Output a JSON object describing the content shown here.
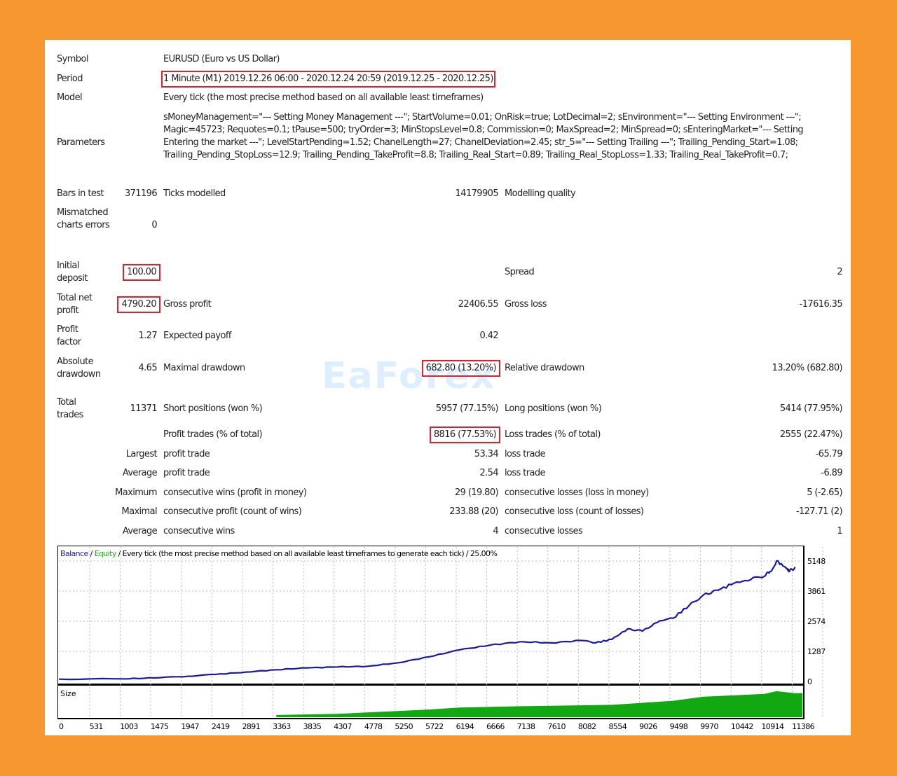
{
  "report": {
    "symbol": {
      "label": "Symbol",
      "value": "EURUSD (Euro vs US Dollar)"
    },
    "period": {
      "label": "Period",
      "value": "1 Minute (M1) 2019.12.26 06:00 - 2020.12.24 20:59 (2019.12.25 - 2020.12.25)"
    },
    "model": {
      "label": "Model",
      "value": "Every tick (the most precise method based on all available least timeframes)"
    },
    "parameters": {
      "label": "Parameters",
      "value": "sMoneyManagement=\"--- Setting Money Management ---\"; StartVolume=0.01; OnRisk=true; LotDecimal=2; sEnvironment=\"--- Setting Environment ---\"; Magic=45723; Requotes=0.1; tPause=500; tryOrder=3; MinStopsLevel=0.8; Commission=0; MaxSpread=2; MinSpread=0; sEnteringMarket=\"--- Setting Entering the market ---\"; LevelStartPending=1.52; ChanelLength=27; ChanelDeviation=2.45; str_5=\"--- Setting Trailing ---\"; Trailing_Pending_Start=1.08; Trailing_Pending_StopLoss=12.9; Trailing_Pending_TakeProfit=8.8; Trailing_Real_Start=0.89; Trailing_Real_StopLoss=1.33; Trailing_Real_TakeProfit=0.7;"
    },
    "bars_in_test": {
      "label": "Bars in test",
      "value": "371196"
    },
    "ticks_modelled": {
      "label": "Ticks modelled",
      "value": "14179905"
    },
    "modeling_quality": {
      "label": "Modelling quality",
      "value": ""
    },
    "mismatched": {
      "label": "Mismatched charts errors",
      "value": "0"
    },
    "initial_deposit": {
      "label": "Initial deposit",
      "value": "100.00"
    },
    "spread": {
      "label": "Spread",
      "value": "2"
    },
    "total_net_profit": {
      "label": "Total net profit",
      "value": "4790.20"
    },
    "gross_profit": {
      "label": "Gross profit",
      "value": "22406.55"
    },
    "gross_loss": {
      "label": "Gross loss",
      "value": "-17616.35"
    },
    "profit_factor": {
      "label": "Profit factor",
      "value": "1.27"
    },
    "expected_payoff": {
      "label": "Expected payoff",
      "value": "0.42"
    },
    "absolute_drawdown": {
      "label": "Absolute drawdown",
      "value": "4.65"
    },
    "maximal_drawdown": {
      "label": "Maximal drawdown",
      "value": "682.80 (13.20%)"
    },
    "relative_drawdown": {
      "label": "Relative drawdown",
      "value": "13.20% (682.80)"
    },
    "total_trades": {
      "label": "Total trades",
      "value": "11371"
    },
    "short_positions": {
      "label": "Short positions (won %)",
      "value": "5957 (77.15%)"
    },
    "long_positions": {
      "label": "Long positions (won %)",
      "value": "5414 (77.95%)"
    },
    "profit_trades": {
      "label": "Profit trades (% of total)",
      "value": "8816 (77.53%)"
    },
    "loss_trades": {
      "label": "Loss trades (% of total)",
      "value": "2555 (22.47%)"
    },
    "largest": {
      "label": "Largest",
      "profit_label": "profit trade",
      "profit": "53.34",
      "loss_label": "loss trade",
      "loss": "-65.79"
    },
    "average": {
      "label": "Average",
      "profit_label": "profit trade",
      "profit": "2.54",
      "loss_label": "loss trade",
      "loss": "-6.89"
    },
    "maximum": {
      "label": "Maximum",
      "wins_label": "consecutive wins (profit in money)",
      "wins": "29 (19.80)",
      "losses_label": "consecutive losses (loss in money)",
      "losses": "5 (-2.65)"
    },
    "maximal": {
      "label": "Maximal",
      "wins_label": "consecutive profit (count of wins)",
      "wins": "233.88 (20)",
      "losses_label": "consecutive loss (count of losses)",
      "losses": "-127.71 (2)"
    },
    "average_consec": {
      "label": "Average",
      "wins_label": "consecutive wins",
      "wins": "4",
      "losses_label": "consecutive losses",
      "losses": "1"
    }
  },
  "watermark": "EaForex",
  "chart_data": {
    "type": "line",
    "title_parts": {
      "balance": "Balance",
      "sep1": " / ",
      "equity": "Equity",
      "rest": " / Every tick (the most precise method based on all available least timeframes to generate each tick) / 25.00%"
    },
    "size_label": "Size",
    "x_ticks": [
      "0",
      "531",
      "1003",
      "1475",
      "1947",
      "2419",
      "2891",
      "3363",
      "3835",
      "4307",
      "4778",
      "5250",
      "5722",
      "6194",
      "6666",
      "7138",
      "7610",
      "8082",
      "8554",
      "9026",
      "9498",
      "9970",
      "10442",
      "10914",
      "11386"
    ],
    "y_ticks": [
      "0",
      "1287",
      "2574",
      "3861",
      "5148"
    ],
    "xlim": [
      0,
      11500
    ],
    "ylim": [
      0,
      5148
    ],
    "colors": {
      "balance": "#1a1aa0",
      "equity": "#22aa22",
      "size": "#11a811",
      "size_light": "#88dd88"
    },
    "series": [
      {
        "name": "Balance",
        "x": [
          0,
          1000,
          1475,
          2000,
          2419,
          2891,
          3363,
          3835,
          4307,
          4778,
          5250,
          5722,
          6194,
          6666,
          7138,
          7610,
          8082,
          8300,
          8554,
          8800,
          9026,
          9300,
          9498,
          9750,
          9970,
          10200,
          10442,
          10700,
          10914,
          11000,
          11100,
          11250,
          11300,
          11386
        ],
        "y": [
          100,
          110,
          150,
          220,
          300,
          400,
          500,
          580,
          620,
          650,
          800,
          1050,
          1350,
          1550,
          1700,
          1650,
          1750,
          1650,
          1800,
          2250,
          2150,
          2600,
          2700,
          3250,
          3700,
          3900,
          4200,
          4350,
          4500,
          4700,
          5148,
          4850,
          4700,
          4890
        ]
      }
    ],
    "size_series": {
      "x": [
        3363,
        4307,
        5722,
        6194,
        7138,
        8554,
        9498,
        9970,
        10914,
        11100,
        11386
      ],
      "y": [
        0.08,
        0.12,
        0.28,
        0.35,
        0.4,
        0.45,
        0.6,
        0.75,
        0.85,
        0.95,
        0.88
      ]
    }
  }
}
